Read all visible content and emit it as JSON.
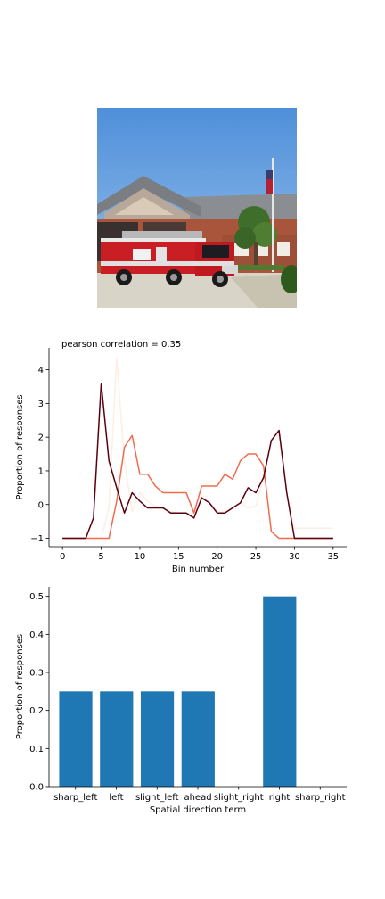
{
  "chart_data": [
    {
      "type": "line",
      "title": "pearson correlation = 0.35",
      "xlabel": "Bin number",
      "ylabel": "Proportion of responses",
      "xlim": [
        -1.75,
        36.75
      ],
      "ylim": [
        -1.25,
        4.65
      ],
      "xticks": [
        0,
        5,
        10,
        15,
        20,
        25,
        30,
        35
      ],
      "yticks": [
        -1,
        0,
        1,
        2,
        3,
        4
      ],
      "series": [
        {
          "color": "#fdefe3",
          "values": [
            -1,
            -1,
            -1,
            -1,
            -1,
            -1,
            -0.1,
            4.35,
            1.3,
            -0.2,
            0.35,
            0.1,
            -0.05,
            -0.1,
            -0.2,
            -0.25,
            -0.25,
            -0.35,
            0.2,
            0.05,
            -0.2,
            -0.2,
            -0.1,
            0.05,
            -0.1,
            -0.05,
            0.8,
            1.9,
            2.1,
            0.3,
            -0.7,
            -0.7,
            -0.7,
            -0.7,
            -0.7,
            -0.7
          ]
        },
        {
          "color": "#f26b4f",
          "values": [
            -1,
            -1,
            -1,
            -1,
            -1,
            -1,
            -1,
            0.1,
            1.7,
            2.05,
            0.9,
            0.9,
            0.55,
            0.35,
            0.35,
            0.35,
            0.35,
            -0.25,
            0.55,
            0.55,
            0.55,
            0.9,
            0.75,
            1.3,
            1.5,
            1.5,
            1.15,
            -0.8,
            -1,
            -1,
            -1,
            -1,
            -1,
            -1,
            -1,
            -1
          ]
        },
        {
          "color": "#5a0010",
          "values": [
            -1,
            -1,
            -1,
            -1,
            -0.4,
            3.6,
            1.3,
            0.5,
            -0.25,
            0.35,
            0.1,
            -0.1,
            -0.1,
            -0.1,
            -0.25,
            -0.25,
            -0.25,
            -0.4,
            0.2,
            0.05,
            -0.25,
            -0.25,
            -0.1,
            0.05,
            0.5,
            0.35,
            0.8,
            1.9,
            2.2,
            0.35,
            -1,
            -1,
            -1,
            -1,
            -1,
            -1
          ]
        }
      ]
    },
    {
      "type": "bar",
      "xlabel": "Spatial direction term",
      "ylabel": "Proportion of responses",
      "ylim": [
        0,
        0.525
      ],
      "yticks": [
        0.0,
        0.1,
        0.2,
        0.3,
        0.4,
        0.5
      ],
      "ytick_labels": [
        "0.0",
        "0.1",
        "0.2",
        "0.3",
        "0.4",
        "0.5"
      ],
      "categories": [
        "sharp_left",
        "left",
        "slight_left",
        "ahead",
        "slight_right",
        "right",
        "sharp_right"
      ],
      "values": [
        0.25,
        0.25,
        0.25,
        0.25,
        0,
        0.5,
        0
      ],
      "bar_color": "#1f77b4"
    }
  ]
}
